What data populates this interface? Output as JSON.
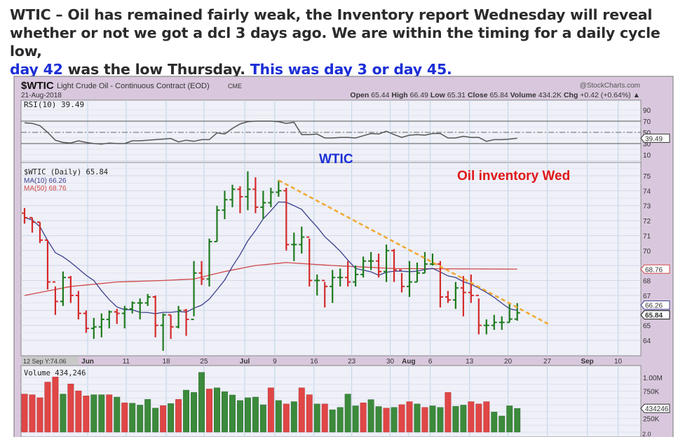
{
  "article": {
    "line1": "WTIC –  Oil has remained fairly weak,  the Inventory report Wednesday will reveal",
    "line2": "whether or not we got a dcl 3 days ago.  We are within the timing for a daily cycle low,",
    "line3_a": "day 42",
    "line3_b": " was the low Thursday.  ",
    "line3_c": "This was day 3 or day 45."
  },
  "chart_header": {
    "symbol": "$WTIC",
    "name": "Light Crude Oil - Continuous Contract (EOD)",
    "exchange": "CME",
    "date": "21-Aug-2018",
    "brand": "@StockCharts.com",
    "open_label": "Open",
    "open": "65.44",
    "high_label": "High",
    "high": "66.49",
    "low_label": "Low",
    "low": "65.31",
    "close_label": "Close",
    "close": "65.84",
    "volume_label": "Volume",
    "volume": "434.2K",
    "chg_label": "Chg",
    "chg": "+0.42 (+0.64%) ▲"
  },
  "colors": {
    "up": "#1e7a1e",
    "down": "#d42a2a",
    "ma10": "#3a3f8a",
    "ma50": "#d04848",
    "trend": "#f0a830",
    "note_blue": "#1c2fd6",
    "note_red": "#e01818"
  },
  "chart_data": {
    "type": "ohlc",
    "title": "$WTIC Light Crude Oil - Continuous Contract (EOD)",
    "annotations": [
      "WTIC",
      "Oil inventory Wed"
    ],
    "rsi": {
      "legend": "RSI(10) 39.49",
      "current": "39.49",
      "ticks": [
        "90",
        "70",
        "50",
        "30",
        "10"
      ],
      "tick_values": [
        90,
        70,
        50,
        30,
        10
      ],
      "values": [
        67,
        66,
        62,
        50,
        36,
        32,
        31,
        35,
        32,
        30,
        29,
        31,
        30,
        30,
        35,
        35,
        36,
        37,
        38,
        39,
        33,
        36,
        34,
        37,
        37,
        49,
        47,
        57,
        65,
        69,
        70,
        70,
        70,
        69,
        66,
        68,
        46,
        46,
        47,
        40,
        40,
        41,
        41,
        40,
        44,
        48,
        47,
        52,
        46,
        41,
        45,
        46,
        45,
        48,
        48,
        40,
        40,
        43,
        41,
        41,
        34,
        37,
        37,
        38,
        39.49
      ]
    },
    "price": {
      "legend": "$WTIC (Daily) 65.84",
      "ma10_legend": "MA(10) 66.26",
      "ma50_legend": "MA(50) 68.76",
      "ylim": [
        63,
        76
      ],
      "ticks": [
        "75",
        "74",
        "73",
        "72",
        "71",
        "70",
        "68",
        "67",
        "65",
        "64"
      ],
      "tick_values": [
        75,
        74,
        73,
        72,
        71,
        70,
        68,
        67,
        65,
        64
      ],
      "tags": {
        "ma50": "68.76",
        "ma10": "66.26",
        "close": "65.84"
      },
      "high": [
        72.85,
        72.2,
        71.9,
        70.7,
        67.6,
        68.6,
        68.3,
        67.3,
        66.0,
        65.5,
        65.8,
        66.0,
        66.1,
        66.3,
        66.6,
        66.8,
        67.1,
        67.0,
        65.8,
        65.7,
        66.3,
        66.1,
        69.3,
        69.3,
        70.8,
        73.0,
        74.0,
        74.4,
        74.3,
        75.3,
        74.9,
        74.0,
        74.2,
        74.7,
        74.2,
        71.2,
        71.6,
        70.8,
        68.4,
        67.9,
        68.7,
        68.8,
        69.3,
        69.0,
        69.6,
        69.9,
        69.8,
        70.4,
        70.1,
        68.5,
        69.3,
        69.2,
        69.9,
        69.8,
        69.3,
        67.3,
        67.9,
        68.3,
        68.4,
        66.8,
        65.4,
        65.7,
        65.6,
        66.5,
        66.49
      ],
      "low": [
        71.8,
        71.2,
        70.5,
        67.4,
        65.7,
        66.3,
        66.5,
        65.4,
        64.5,
        64.1,
        64.2,
        64.8,
        65.1,
        64.8,
        65.8,
        65.4,
        66.3,
        64.2,
        63.3,
        64.1,
        64.8,
        64.3,
        65.6,
        67.7,
        67.6,
        70.6,
        72.1,
        72.9,
        72.5,
        72.7,
        72.5,
        72.1,
        72.9,
        73.6,
        70.0,
        69.3,
        69.8,
        67.6,
        67.0,
        66.2,
        66.5,
        67.6,
        67.6,
        67.6,
        68.2,
        68.7,
        68.2,
        67.9,
        67.9,
        67.2,
        66.9,
        67.9,
        68.5,
        69.0,
        66.2,
        66.5,
        66.1,
        65.6,
        66.5,
        64.4,
        64.4,
        64.7,
        64.7,
        65.2,
        65.31
      ],
      "close": [
        72.2,
        71.9,
        70.7,
        67.9,
        66.6,
        68.2,
        67.0,
        65.8,
        64.8,
        64.9,
        65.4,
        65.9,
        65.8,
        66.1,
        66.5,
        66.5,
        66.9,
        65.0,
        65.7,
        64.9,
        66.0,
        65.4,
        68.5,
        68.1,
        70.6,
        72.7,
        73.4,
        74.1,
        73.6,
        74.1,
        72.9,
        73.2,
        73.9,
        74.0,
        70.4,
        70.4,
        70.9,
        68.0,
        68.0,
        67.6,
        68.2,
        68.2,
        67.9,
        68.4,
        69.3,
        69.3,
        68.6,
        70.0,
        68.7,
        67.6,
        67.9,
        68.5,
        69.1,
        69.1,
        66.9,
        66.7,
        67.5,
        67.2,
        67.0,
        65.0,
        65.0,
        65.2,
        65.2,
        65.42,
        65.84
      ],
      "ma50_anchors": [
        [
          0,
          67.0
        ],
        [
          6,
          67.6
        ],
        [
          12,
          67.9
        ],
        [
          18,
          68.0
        ],
        [
          22,
          68.1
        ],
        [
          26,
          68.6
        ],
        [
          30,
          69.0
        ],
        [
          34,
          69.2
        ],
        [
          40,
          69.0
        ],
        [
          48,
          68.8
        ],
        [
          64,
          68.76
        ]
      ],
      "trendline": [
        [
          33,
          74.7
        ],
        [
          68,
          65.1
        ]
      ]
    },
    "x_axis": {
      "tooltip": "12 Sep Y:74.06",
      "labels": [
        {
          "text": "Jun",
          "index": 8.2,
          "bold": true
        },
        {
          "text": "11",
          "index": 13.2
        },
        {
          "text": "18",
          "index": 18.4
        },
        {
          "text": "25",
          "index": 23.3
        },
        {
          "text": "Jul",
          "index": 28.6,
          "bold": true
        },
        {
          "text": "9",
          "index": 32.5
        },
        {
          "text": "16",
          "index": 37.6
        },
        {
          "text": "23",
          "index": 42.5
        },
        {
          "text": "30",
          "index": 47.5
        },
        {
          "text": "Aug",
          "index": 49.9,
          "bold": true
        },
        {
          "text": "6",
          "index": 52.7
        },
        {
          "text": "13",
          "index": 57.8
        },
        {
          "text": "20",
          "index": 62.8
        },
        {
          "text": "27",
          "index": 67.9
        },
        {
          "text": "Sep",
          "index": 73.1,
          "bold": true
        },
        {
          "text": "10",
          "index": 77.1
        }
      ]
    },
    "volume": {
      "legend": "Volume 434,246",
      "tag": "434246",
      "ticks": [
        "1.00M",
        "750K",
        "250K"
      ],
      "tick_values": [
        1000,
        750,
        250
      ],
      "unit": "K",
      "values": [
        696,
        684,
        629,
        916,
        1009,
        696,
        882,
        755,
        663,
        684,
        684,
        684,
        641,
        536,
        528,
        494,
        599,
        439,
        485,
        523,
        599,
        768,
        726,
        1093,
        789,
        810,
        739,
        679,
        578,
        629,
        641,
        500,
        810,
        578,
        515,
        557,
        810,
        684,
        515,
        515,
        409,
        452,
        696,
        481,
        536,
        595,
        468,
        439,
        452,
        502,
        557,
        515,
        452,
        481,
        452,
        726,
        473,
        494,
        557,
        515,
        557,
        367,
        295,
        481,
        434
      ],
      "up": [
        0,
        0,
        0,
        0,
        0,
        1,
        0,
        0,
        0,
        1,
        1,
        0,
        1,
        0,
        1,
        1,
        1,
        1,
        0,
        1,
        0,
        1,
        1,
        1,
        0,
        1,
        1,
        1,
        1,
        1,
        1,
        1,
        0,
        1,
        0,
        1,
        0,
        0,
        1,
        0,
        1,
        1,
        1,
        1,
        0,
        1,
        1,
        0,
        1,
        0,
        0,
        1,
        0,
        1,
        1,
        0,
        1,
        1,
        0,
        0,
        0,
        1,
        1,
        1,
        1
      ]
    },
    "macd_partial": "2.0"
  }
}
